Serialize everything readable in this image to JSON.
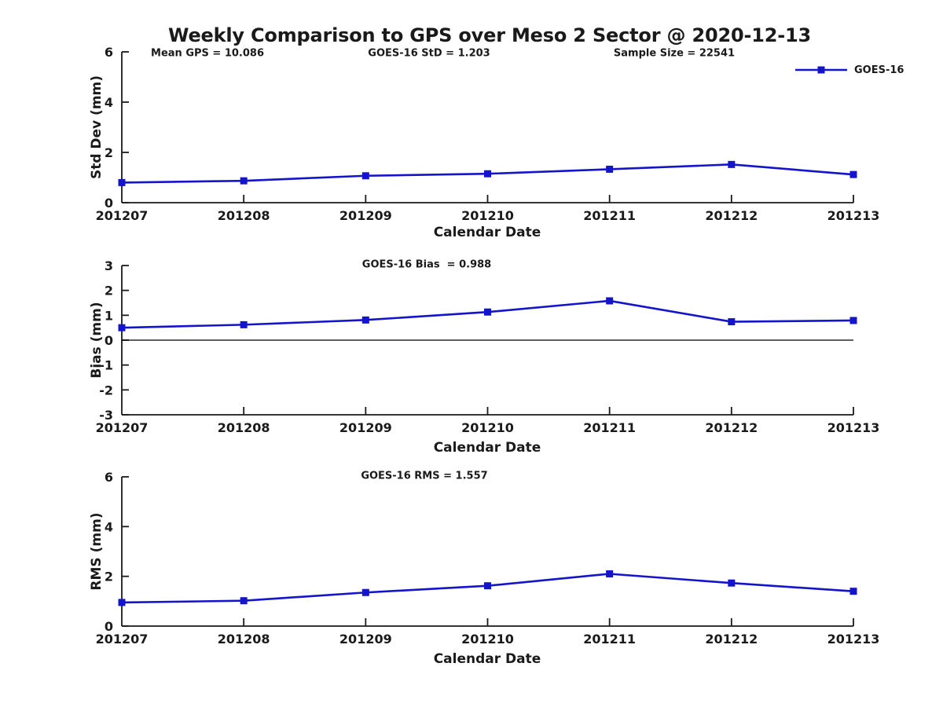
{
  "title": "Weekly Comparison to GPS over Meso 2 Sector @ 2020-12-13",
  "legend": {
    "label": "GOES-16"
  },
  "colors": {
    "line": "#1414cc",
    "axis": "#1a1a1a",
    "zero_line": "#000000"
  },
  "chart_data": [
    {
      "type": "line",
      "categories": [
        "201207",
        "201208",
        "201209",
        "201210",
        "201211",
        "201212",
        "201213"
      ],
      "series": [
        {
          "name": "GOES-16",
          "values": [
            0.8,
            0.87,
            1.07,
            1.15,
            1.33,
            1.52,
            1.12
          ]
        }
      ],
      "xlabel": "Calendar Date",
      "ylabel": "Std Dev (mm)",
      "ylim": [
        0,
        6
      ],
      "yticks": [
        0,
        2,
        4,
        6
      ],
      "grid": false,
      "legend_position": "top-right",
      "annotations": [
        "Mean GPS = 10.086",
        "GOES-16 StD = 1.203",
        "Sample Size = 22541"
      ]
    },
    {
      "type": "line",
      "categories": [
        "201207",
        "201208",
        "201209",
        "201210",
        "201211",
        "201212",
        "201213"
      ],
      "series": [
        {
          "name": "GOES-16",
          "values": [
            0.5,
            0.62,
            0.81,
            1.13,
            1.58,
            0.74,
            0.79
          ]
        }
      ],
      "xlabel": "Calendar Date",
      "ylabel": "Bias (mm)",
      "ylim": [
        -3,
        3
      ],
      "yticks": [
        3,
        2,
        1,
        0,
        -1,
        -2,
        -3
      ],
      "grid": false,
      "zero_line": true,
      "annotations": [
        "GOES-16 Bias  = 0.988"
      ]
    },
    {
      "type": "line",
      "categories": [
        "201207",
        "201208",
        "201209",
        "201210",
        "201211",
        "201212",
        "201213"
      ],
      "series": [
        {
          "name": "GOES-16",
          "values": [
            0.95,
            1.02,
            1.35,
            1.62,
            2.1,
            1.73,
            1.4
          ]
        }
      ],
      "xlabel": "Calendar Date",
      "ylabel": "RMS (mm)",
      "ylim": [
        0,
        6
      ],
      "yticks": [
        0,
        2,
        4,
        6
      ],
      "grid": false,
      "annotations": [
        "GOES-16 RMS = 1.557"
      ]
    }
  ]
}
